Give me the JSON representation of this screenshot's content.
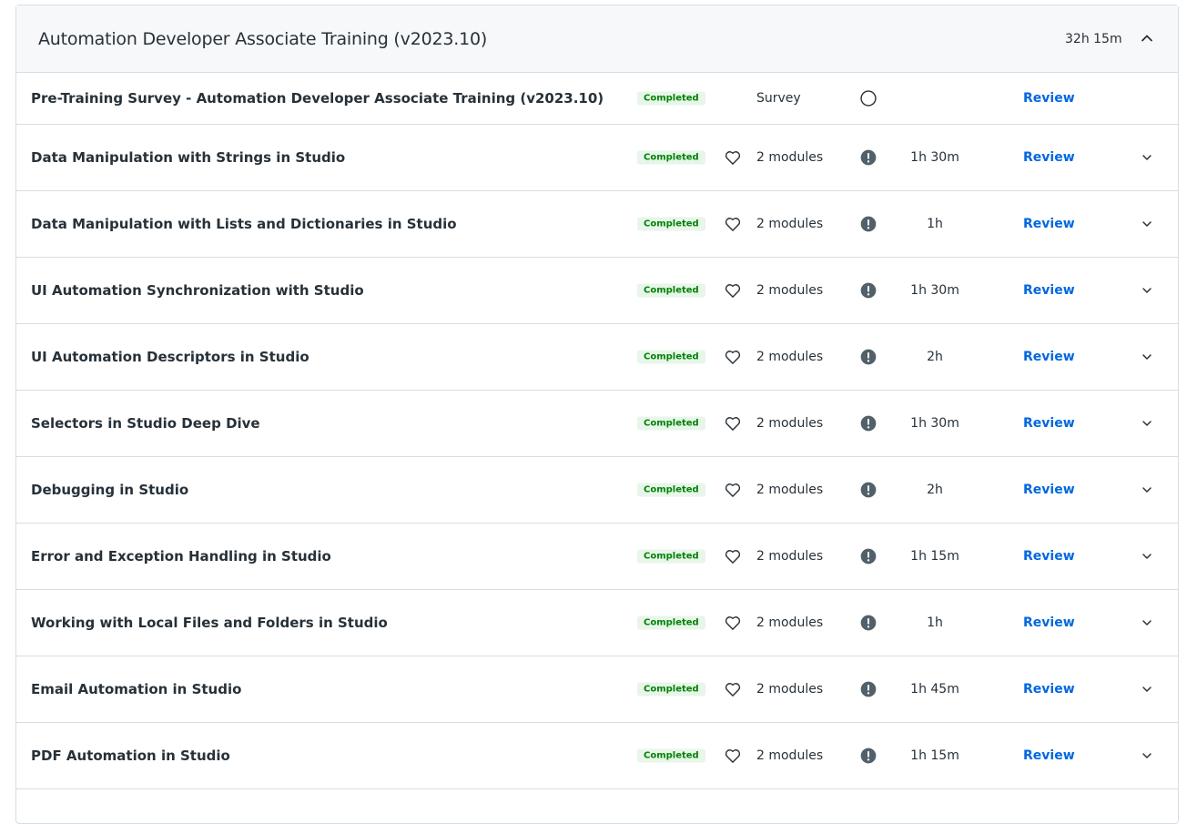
{
  "header": {
    "title": "Automation Developer Associate Training (v2023.10)",
    "duration": "32h 15m",
    "accent_color": "#fa4616"
  },
  "courses": [
    {
      "title": "Pre-Training Survey - Automation Developer Associate Training (v2023.10)",
      "status": "Completed",
      "type_label": "Survey",
      "icon": "circle-outline-icon",
      "duration": "",
      "action": "Review",
      "favorite": false,
      "expandable": false
    },
    {
      "title": "Data Manipulation with Strings in Studio",
      "status": "Completed",
      "type_label": "2 modules",
      "icon": "alert-circle-icon",
      "duration": "1h 30m",
      "action": "Review",
      "favorite": true,
      "expandable": true
    },
    {
      "title": "Data Manipulation with Lists and Dictionaries in Studio",
      "status": "Completed",
      "type_label": "2 modules",
      "icon": "alert-circle-icon",
      "duration": "1h",
      "action": "Review",
      "favorite": true,
      "expandable": true
    },
    {
      "title": "UI Automation Synchronization with Studio",
      "status": "Completed",
      "type_label": "2 modules",
      "icon": "alert-circle-icon",
      "duration": "1h 30m",
      "action": "Review",
      "favorite": true,
      "expandable": true
    },
    {
      "title": "UI Automation Descriptors in Studio",
      "status": "Completed",
      "type_label": "2 modules",
      "icon": "alert-circle-icon",
      "duration": "2h",
      "action": "Review",
      "favorite": true,
      "expandable": true
    },
    {
      "title": "Selectors in Studio Deep Dive",
      "status": "Completed",
      "type_label": "2 modules",
      "icon": "alert-circle-icon",
      "duration": "1h 30m",
      "action": "Review",
      "favorite": true,
      "expandable": true
    },
    {
      "title": "Debugging in Studio",
      "status": "Completed",
      "type_label": "2 modules",
      "icon": "alert-circle-icon",
      "duration": "2h",
      "action": "Review",
      "favorite": true,
      "expandable": true
    },
    {
      "title": "Error and Exception Handling in Studio",
      "status": "Completed",
      "type_label": "2 modules",
      "icon": "alert-circle-icon",
      "duration": "1h 15m",
      "action": "Review",
      "favorite": true,
      "expandable": true
    },
    {
      "title": "Working with Local Files and Folders in Studio",
      "status": "Completed",
      "type_label": "2 modules",
      "icon": "alert-circle-icon",
      "duration": "1h",
      "action": "Review",
      "favorite": true,
      "expandable": true
    },
    {
      "title": "Email Automation in Studio",
      "status": "Completed",
      "type_label": "2 modules",
      "icon": "alert-circle-icon",
      "duration": "1h 45m",
      "action": "Review",
      "favorite": true,
      "expandable": true
    },
    {
      "title": "PDF Automation in Studio",
      "status": "Completed",
      "type_label": "2 modules",
      "icon": "alert-circle-icon",
      "duration": "1h 15m",
      "action": "Review",
      "favorite": true,
      "expandable": true
    }
  ]
}
